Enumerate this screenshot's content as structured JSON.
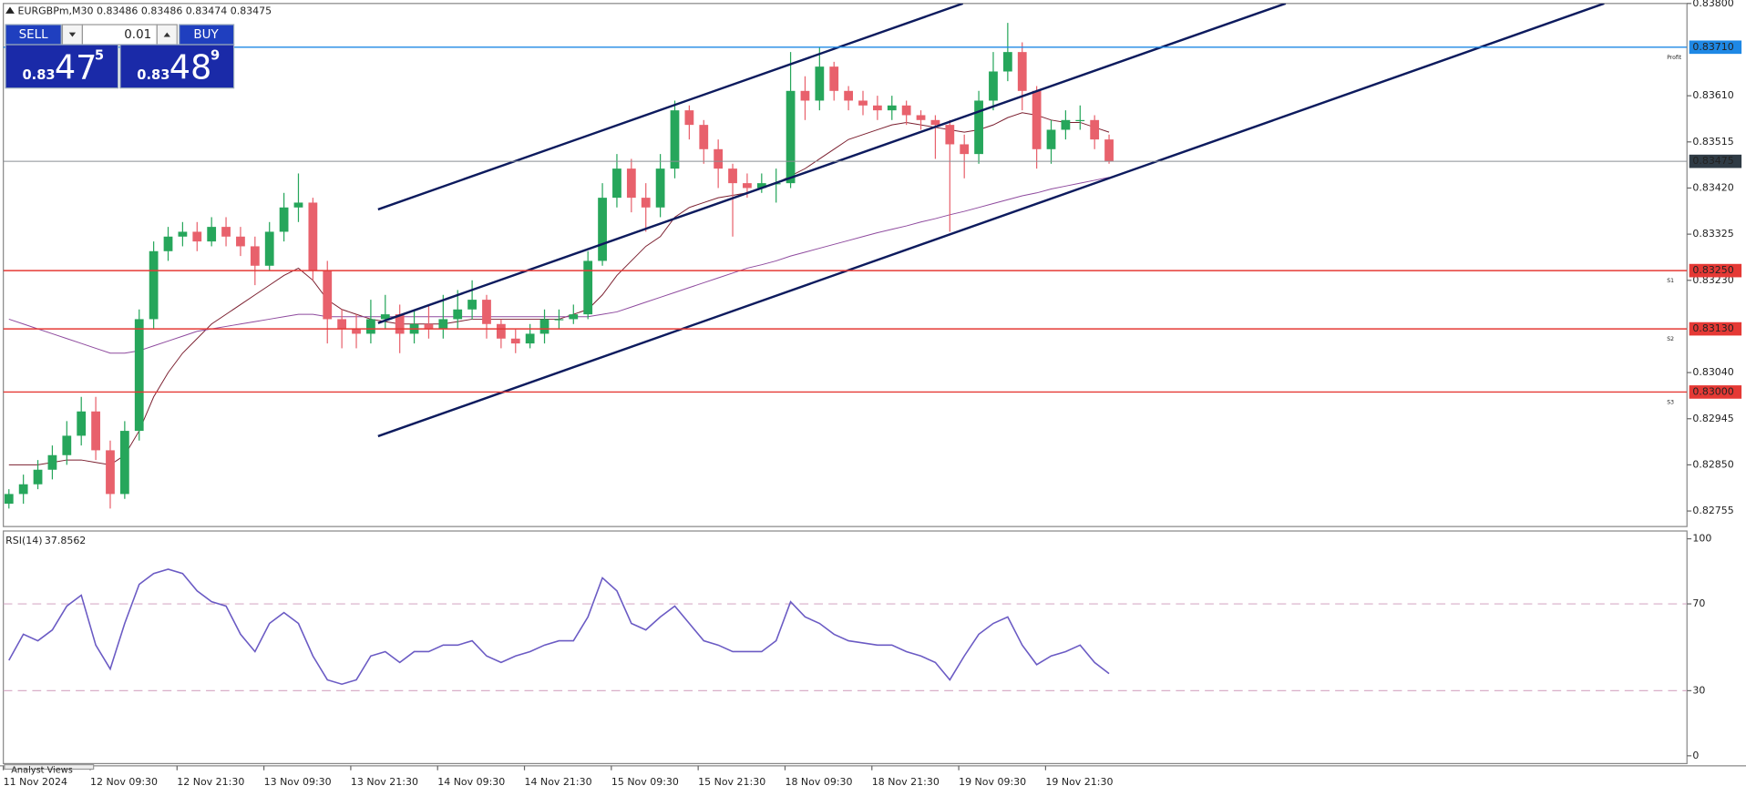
{
  "header": {
    "symbol_info": "EURGBPm,M30  0.83486 0.83486 0.83474 0.83475"
  },
  "trade_panel": {
    "sell": "SELL",
    "buy": "BUY",
    "lot": "0.01",
    "sell_price": {
      "big": "0.83",
      "main": "47",
      "pip": "5"
    },
    "buy_price": {
      "big": "0.83",
      "main": "48",
      "pip": "9"
    }
  },
  "footer_tab": "Analyst Views",
  "chart_data": [
    {
      "type": "candlestick",
      "categories": [
        "11 Nov 2024",
        null,
        null,
        null,
        null,
        null,
        "12 Nov 09:30",
        null,
        null,
        null,
        null,
        null,
        "12 Nov 21:30",
        null,
        null,
        null,
        null,
        null,
        "13 Nov 09:30",
        null,
        null,
        null,
        null,
        null,
        "13 Nov 21:30",
        null,
        null,
        null,
        null,
        null,
        "14 Nov 09:30",
        null,
        null,
        null,
        null,
        null,
        "14 Nov 21:30",
        null,
        null,
        null,
        null,
        null,
        "15 Nov 09:30",
        null,
        null,
        null,
        null,
        null,
        "15 Nov 21:30",
        null,
        null,
        null,
        null,
        null,
        "18 Nov 09:30",
        null,
        null,
        null,
        null,
        null,
        "18 Nov 21:30",
        null,
        null,
        null,
        null,
        null,
        "19 Nov 09:30",
        null,
        null,
        null,
        null,
        null,
        "19 Nov 21:30",
        null,
        null,
        null,
        null
      ],
      "open": [
        0.8277,
        0.8279,
        0.8281,
        0.8284,
        0.8287,
        0.8291,
        0.8296,
        0.8288,
        0.8279,
        0.8292,
        0.8315,
        0.8329,
        0.8332,
        0.8333,
        0.8331,
        0.8334,
        0.8332,
        0.833,
        0.8326,
        0.8333,
        0.8338,
        0.8339,
        0.8325,
        0.8315,
        0.8313,
        0.8312,
        0.8315,
        0.8316,
        0.8312,
        0.8314,
        0.8313,
        0.8315,
        0.8317,
        0.8319,
        0.8314,
        0.8311,
        0.831,
        0.8312,
        0.8315,
        0.8315,
        0.8316,
        0.8327,
        0.834,
        0.8346,
        0.834,
        0.8338,
        0.8346,
        0.8358,
        0.8355,
        0.835,
        0.8346,
        0.8343,
        0.8342,
        0.8343,
        0.8343,
        0.8362,
        0.836,
        0.8367,
        0.8362,
        0.836,
        0.8359,
        0.8358,
        0.8359,
        0.8357,
        0.8356,
        0.8355,
        0.8351,
        0.8349,
        0.836,
        0.8366,
        0.837,
        0.8362,
        0.835,
        0.8354,
        0.8356,
        0.8356,
        0.8352
      ],
      "high": [
        0.828,
        0.8283,
        0.8286,
        0.8289,
        0.8294,
        0.8299,
        0.8299,
        0.829,
        0.8294,
        0.8317,
        0.8331,
        0.8334,
        0.8335,
        0.8335,
        0.8336,
        0.8336,
        0.8334,
        0.8332,
        0.8335,
        0.8341,
        0.8345,
        0.834,
        0.8327,
        0.8317,
        0.8316,
        0.8319,
        0.832,
        0.8318,
        0.8317,
        0.8318,
        0.832,
        0.8321,
        0.8323,
        0.832,
        0.8315,
        0.8313,
        0.8314,
        0.8317,
        0.8317,
        0.8318,
        0.8329,
        0.8343,
        0.8349,
        0.8348,
        0.8343,
        0.8349,
        0.836,
        0.8359,
        0.8356,
        0.8352,
        0.8347,
        0.8345,
        0.8345,
        0.8346,
        0.837,
        0.8365,
        0.8371,
        0.8368,
        0.8363,
        0.8362,
        0.8361,
        0.8361,
        0.836,
        0.8358,
        0.8357,
        0.8356,
        0.8353,
        0.8362,
        0.837,
        0.8376,
        0.8372,
        0.8363,
        0.8356,
        0.8358,
        0.8359,
        0.8357,
        0.8353
      ],
      "low": [
        0.8276,
        0.8277,
        0.828,
        0.8282,
        0.8285,
        0.8289,
        0.8286,
        0.8276,
        0.8278,
        0.829,
        0.8313,
        0.8327,
        0.833,
        0.8329,
        0.833,
        0.833,
        0.8328,
        0.8322,
        0.8325,
        0.8331,
        0.8335,
        0.8323,
        0.831,
        0.8309,
        0.8309,
        0.831,
        0.8313,
        0.8308,
        0.831,
        0.8311,
        0.8311,
        0.8313,
        0.8315,
        0.8311,
        0.8309,
        0.8308,
        0.8309,
        0.831,
        0.8313,
        0.8314,
        0.8315,
        0.8326,
        0.8338,
        0.8337,
        0.8333,
        0.8336,
        0.8344,
        0.8352,
        0.8347,
        0.8342,
        0.8332,
        0.834,
        0.8341,
        0.8339,
        0.8342,
        0.8356,
        0.8358,
        0.836,
        0.8358,
        0.8357,
        0.8356,
        0.8356,
        0.8355,
        0.8354,
        0.8348,
        0.8333,
        0.8344,
        0.8347,
        0.8358,
        0.8364,
        0.8358,
        0.8346,
        0.8347,
        0.8352,
        0.8354,
        0.835,
        0.8347
      ],
      "close": [
        0.8279,
        0.8281,
        0.8284,
        0.8287,
        0.8291,
        0.8296,
        0.8288,
        0.8279,
        0.8292,
        0.8315,
        0.8329,
        0.8332,
        0.8333,
        0.8331,
        0.8334,
        0.8332,
        0.833,
        0.8326,
        0.8333,
        0.8338,
        0.8339,
        0.8325,
        0.8315,
        0.8313,
        0.8312,
        0.8315,
        0.8316,
        0.8312,
        0.8314,
        0.8313,
        0.8315,
        0.8317,
        0.8319,
        0.8314,
        0.8311,
        0.831,
        0.8312,
        0.8315,
        0.8315,
        0.8316,
        0.8327,
        0.834,
        0.8346,
        0.834,
        0.8338,
        0.8346,
        0.8358,
        0.8355,
        0.835,
        0.8346,
        0.8343,
        0.8342,
        0.8343,
        0.8343,
        0.8362,
        0.836,
        0.8367,
        0.8362,
        0.836,
        0.8359,
        0.8358,
        0.8359,
        0.8357,
        0.8356,
        0.8355,
        0.8351,
        0.8349,
        0.836,
        0.8366,
        0.837,
        0.8362,
        0.835,
        0.8354,
        0.8356,
        0.8356,
        0.8352,
        0.83475
      ],
      "up_color": "#26a65b",
      "down_color": "#e8616c",
      "ylim": [
        0.82723,
        0.838
      ],
      "yticks": [
        {
          "value": 0.838,
          "label": "0.83800"
        },
        {
          "value": 0.8361,
          "label": "0.83610"
        },
        {
          "value": 0.83515,
          "label": "0.83515"
        },
        {
          "value": 0.8342,
          "label": "0.83420"
        },
        {
          "value": 0.83325,
          "label": "0.83325"
        },
        {
          "value": 0.8323,
          "label": "0.83230"
        },
        {
          "value": 0.8304,
          "label": "0.83040"
        },
        {
          "value": 0.82945,
          "label": "0.82945"
        },
        {
          "value": 0.8285,
          "label": "0.82850"
        },
        {
          "value": 0.82755,
          "label": "0.82755"
        }
      ],
      "grid": false,
      "moving_averages": [
        {
          "color": "#7b1f2f",
          "values": [
            0.8285,
            0.8285,
            0.8285,
            0.82855,
            0.8286,
            0.8286,
            0.82855,
            0.8285,
            0.8287,
            0.8292,
            0.8299,
            0.8304,
            0.8308,
            0.8311,
            0.8314,
            0.8316,
            0.8318,
            0.832,
            0.8322,
            0.8324,
            0.83255,
            0.8323,
            0.8319,
            0.8317,
            0.8316,
            0.8315,
            0.83145,
            0.8314,
            0.8314,
            0.8314,
            0.8314,
            0.83145,
            0.8315,
            0.8315,
            0.8315,
            0.8315,
            0.8315,
            0.8315,
            0.8315,
            0.8316,
            0.8317,
            0.832,
            0.8324,
            0.8327,
            0.833,
            0.8332,
            0.8336,
            0.8338,
            0.8339,
            0.834,
            0.83405,
            0.8341,
            0.8342,
            0.8343,
            0.83445,
            0.8346,
            0.8348,
            0.835,
            0.8352,
            0.8353,
            0.8354,
            0.8355,
            0.83555,
            0.8355,
            0.83545,
            0.8354,
            0.83535,
            0.8354,
            0.8355,
            0.83565,
            0.83575,
            0.8357,
            0.8356,
            0.83555,
            0.83555,
            0.83545,
            0.83535
          ]
        },
        {
          "color": "#8e4a9e",
          "values": [
            0.8315,
            0.8314,
            0.8313,
            0.8312,
            0.8311,
            0.831,
            0.8309,
            0.8308,
            0.8308,
            0.83085,
            0.83095,
            0.83105,
            0.83115,
            0.83125,
            0.8313,
            0.83135,
            0.8314,
            0.83145,
            0.8315,
            0.83155,
            0.8316,
            0.8316,
            0.83155,
            0.83155,
            0.83155,
            0.83155,
            0.83155,
            0.83155,
            0.83155,
            0.83155,
            0.83155,
            0.83155,
            0.83155,
            0.83155,
            0.83155,
            0.83155,
            0.83155,
            0.83155,
            0.83155,
            0.83155,
            0.83155,
            0.8316,
            0.83165,
            0.83175,
            0.83185,
            0.83195,
            0.83205,
            0.83215,
            0.83225,
            0.83235,
            0.83245,
            0.83255,
            0.83262,
            0.8327,
            0.8328,
            0.83288,
            0.83296,
            0.83304,
            0.83312,
            0.8332,
            0.83328,
            0.83335,
            0.83342,
            0.8335,
            0.83357,
            0.83365,
            0.83372,
            0.8338,
            0.83388,
            0.83396,
            0.83404,
            0.8341,
            0.83418,
            0.83424,
            0.8343,
            0.83436,
            0.83442
          ]
        }
      ],
      "levels": [
        {
          "value": 0.8371,
          "label": "0.83710",
          "tag": "Profit",
          "color": "#1e88e5"
        },
        {
          "value": 0.8325,
          "label": "0.83250",
          "tag": "S1",
          "color": "#e53935"
        },
        {
          "value": 0.8313,
          "label": "0.83130",
          "tag": "S2",
          "color": "#e53935"
        },
        {
          "value": 0.83,
          "label": "0.83000",
          "tag": "S3",
          "color": "#e53935"
        }
      ],
      "current_price": {
        "value": 0.83475,
        "label": "0.83475",
        "color": "#2f3b45"
      },
      "channel_lines": [
        {
          "start_index": 25.5,
          "start_price": 0.83376,
          "end_index": 65.9,
          "end_price": 0.838
        },
        {
          "start_index": 25.5,
          "start_price": 0.83142,
          "end_index": 88.2,
          "end_price": 0.838
        },
        {
          "start_index": 25.5,
          "start_price": 0.82909,
          "end_index": 110.2,
          "end_price": 0.838
        }
      ],
      "channel_color": "#0d1b5e"
    },
    {
      "type": "line",
      "title": "RSI(14)",
      "series": [
        {
          "color": "#6b5bc4",
          "values": [
            44,
            56,
            53,
            58,
            69,
            74,
            51,
            40,
            61,
            79,
            84,
            86,
            84,
            76,
            71,
            69,
            56,
            48,
            61,
            66,
            61,
            46,
            35,
            33,
            35,
            46,
            48,
            43,
            48,
            48,
            51,
            51,
            53,
            46,
            43,
            46,
            48,
            51,
            53,
            53,
            64,
            82,
            76,
            61,
            58,
            64,
            69,
            61,
            53,
            51,
            48,
            48,
            48,
            53,
            71,
            64,
            61,
            56,
            53,
            52,
            51,
            51,
            48,
            46,
            43,
            35,
            46,
            56,
            61,
            64,
            51,
            42,
            46,
            48,
            51,
            43,
            37.8562
          ]
        }
      ],
      "ylim": [
        0,
        100
      ],
      "yticks": [
        100,
        70,
        30,
        0
      ],
      "levels": [
        70,
        30
      ]
    }
  ]
}
